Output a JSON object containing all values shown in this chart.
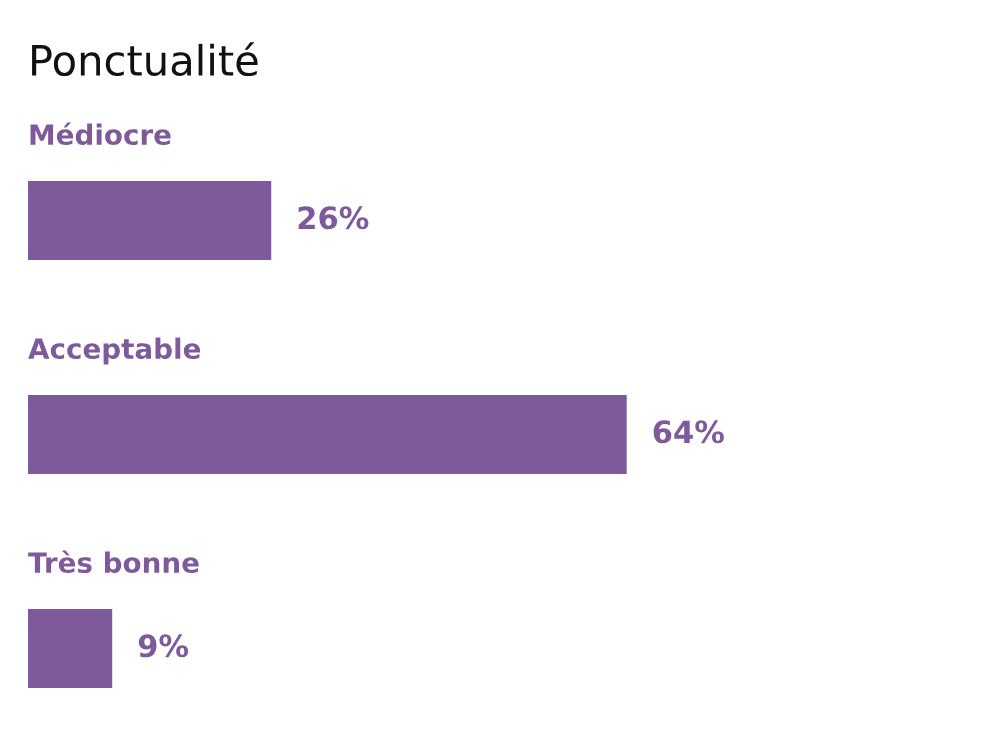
{
  "chart_data": {
    "type": "bar",
    "orientation": "horizontal",
    "title": "Ponctualité",
    "categories": [
      "Médiocre",
      "Acceptable",
      "Très bonne"
    ],
    "values": [
      26,
      64,
      9
    ],
    "color": "#7e5a9b",
    "data_labels": true,
    "value_labels": [
      "26%",
      "64%",
      "9%"
    ]
  }
}
